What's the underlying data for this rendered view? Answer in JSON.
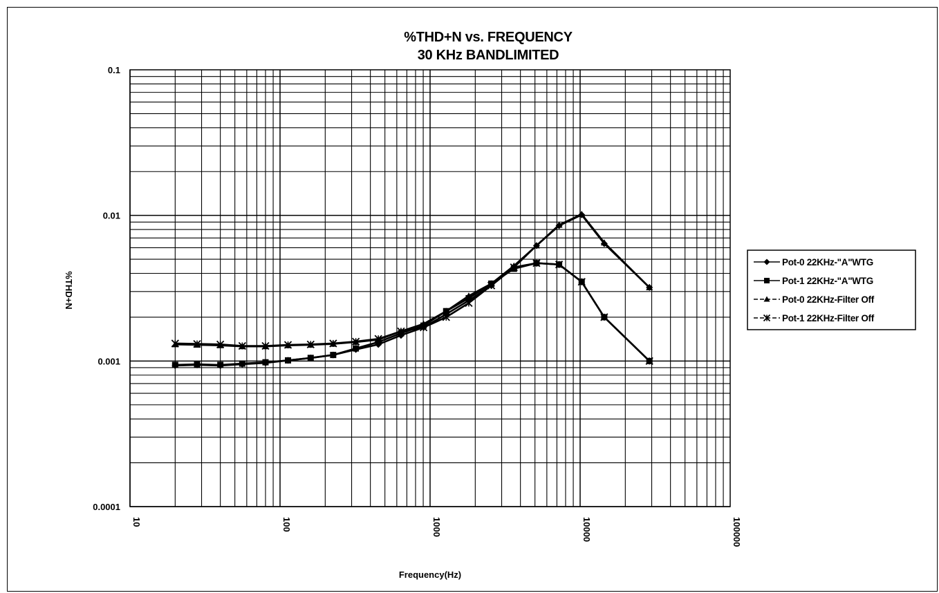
{
  "chart_data": {
    "type": "line",
    "title": "%THD+N vs. FREQUENCY",
    "subtitle": "30 KHz BANDLIMITED",
    "xlabel": "Frequency(Hz)",
    "ylabel": "%THD+N",
    "x_scale": "log",
    "y_scale": "log",
    "xlim": [
      10,
      100000
    ],
    "ylim": [
      0.0001,
      0.1
    ],
    "x_tick_labels": [
      "10",
      "100",
      "1000",
      "10000",
      "100000"
    ],
    "y_tick_labels": [
      "0.1",
      "0.01",
      "0.001",
      "0.0001"
    ],
    "grid": true,
    "legend_position": "right",
    "x": [
      20,
      28,
      40,
      56,
      80,
      113,
      160,
      226,
      320,
      452,
      640,
      905,
      1280,
      1810,
      2560,
      3620,
      5120,
      7240,
      10240,
      14480,
      28960
    ],
    "series": [
      {
        "name": "Pot-0 22KHz-\"A\"WTG",
        "marker": "diamond",
        "values": [
          0.00093,
          0.00094,
          0.00093,
          0.00095,
          0.00097,
          0.00101,
          0.00105,
          0.0011,
          0.0012,
          0.0013,
          0.0015,
          0.0017,
          0.0021,
          0.0026,
          0.0033,
          0.0044,
          0.0062,
          0.0085,
          0.0101,
          0.0064,
          0.0032
        ]
      },
      {
        "name": "Pot-1 22KHz-\"A\"WTG",
        "marker": "square",
        "values": [
          0.00094,
          0.00095,
          0.00094,
          0.00096,
          0.00098,
          0.00101,
          0.00105,
          0.0011,
          0.00122,
          0.00135,
          0.00155,
          0.00175,
          0.0022,
          0.0027,
          0.0034,
          0.0043,
          0.0047,
          0.0046,
          0.0035,
          0.002,
          0.001
        ]
      },
      {
        "name": "Pot-0 22KHz-Filter Off",
        "marker": "triangle",
        "values": [
          0.0013,
          0.00129,
          0.00128,
          0.00126,
          0.00126,
          0.00128,
          0.00129,
          0.00131,
          0.00135,
          0.0014,
          0.0016,
          0.0018,
          0.0022,
          0.0028,
          0.0034,
          0.0045,
          0.0062,
          0.0086,
          0.0102,
          0.0065,
          0.0032
        ]
      },
      {
        "name": "Pot-1 22KHz-Filter Off",
        "marker": "x",
        "values": [
          0.00132,
          0.00131,
          0.0013,
          0.00127,
          0.00127,
          0.00129,
          0.0013,
          0.00132,
          0.00136,
          0.00142,
          0.0016,
          0.0017,
          0.002,
          0.0025,
          0.0033,
          0.0044,
          0.0047,
          0.0046,
          0.0035,
          0.002,
          0.001
        ]
      }
    ]
  }
}
